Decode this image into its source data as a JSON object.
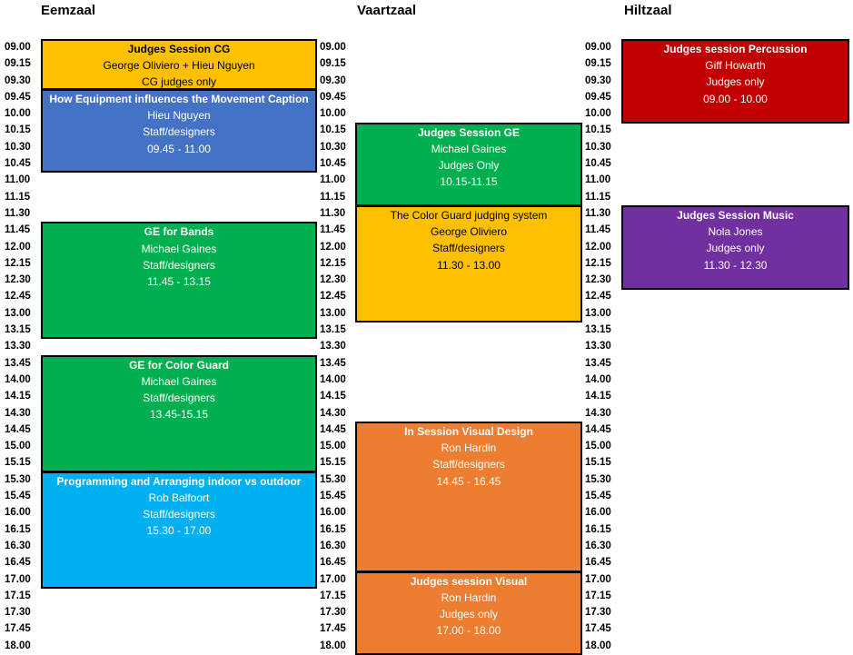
{
  "rooms": [
    "Eemzaal",
    "Vaartzaal",
    "Hiltzaal"
  ],
  "times": [
    "09.00",
    "09.15",
    "09.30",
    "09.45",
    "10.00",
    "10.15",
    "10.30",
    "10.45",
    "11.00",
    "11.15",
    "11.30",
    "11.45",
    "12.00",
    "12.15",
    "12.30",
    "12.45",
    "13.00",
    "13.15",
    "13.30",
    "13.45",
    "14.00",
    "14.15",
    "14.30",
    "14.45",
    "15.00",
    "15.15",
    "15.30",
    "15.45",
    "16.00",
    "16.15",
    "16.30",
    "16.45",
    "17.00",
    "17.15",
    "17.30",
    "17.45",
    "18.00"
  ],
  "colors": {
    "yellow": "#FFC000",
    "blue": "#4472C4",
    "green": "#00B050",
    "lightblue": "#00B0F0",
    "orange": "#ED7D31",
    "red": "#C00000",
    "purple": "#7030A0"
  },
  "sessions": [
    {
      "room": 0,
      "start": 0,
      "end": 3,
      "color": "yellow",
      "title": "Judges Session CG",
      "lines": [
        "George Oliviero + Hieu Nguyen",
        "CG judges only"
      ]
    },
    {
      "room": 0,
      "start": 3,
      "end": 8,
      "color": "blue",
      "title": "How Equipment influences the Movement Caption",
      "lines": [
        "Hieu Nguyen",
        "Staff/designers",
        "09.45 - 11.00"
      ]
    },
    {
      "room": 0,
      "start": 11,
      "end": 18,
      "color": "green",
      "title": "GE for Bands",
      "lines": [
        "Michael Gaines",
        "Staff/designers",
        "11.45 - 13.15"
      ]
    },
    {
      "room": 0,
      "start": 19,
      "end": 26,
      "color": "green",
      "title": "GE for Color Guard",
      "lines": [
        "Michael Gaines",
        "Staff/designers",
        "13.45-15.15"
      ]
    },
    {
      "room": 0,
      "start": 26,
      "end": 33,
      "color": "lightblue",
      "title": "Programming and Arranging indoor vs outdoor",
      "lines": [
        "Rob Balfoort",
        "Staff/designers",
        "15.30 - 17.00"
      ]
    },
    {
      "room": 1,
      "start": 5,
      "end": 10,
      "color": "green",
      "title": "Judges Session GE",
      "lines": [
        "Michael Gaines",
        "Judges Only",
        "10.15-11.15"
      ]
    },
    {
      "room": 1,
      "start": 10,
      "end": 17,
      "color": "yellow",
      "titleBold": false,
      "title": "The Color Guard judging system",
      "lines": [
        "George Oliviero",
        "Staff/designers",
        "11.30 - 13.00"
      ]
    },
    {
      "room": 1,
      "start": 23,
      "end": 32,
      "color": "orange",
      "title": "In Session Visual Design",
      "lines": [
        "Ron Hardin",
        "Staff/designers",
        "14.45 - 16.45"
      ]
    },
    {
      "room": 1,
      "start": 32,
      "end": 37,
      "color": "orange",
      "title": "Judges session Visual",
      "lines": [
        "Ron Hardin",
        "Judges only",
        "17.00 - 18.00"
      ]
    },
    {
      "room": 2,
      "start": 0,
      "end": 5,
      "color": "red",
      "title": "Judges session Percussion",
      "lines": [
        "Giff Howarth",
        "Judges only",
        "09.00 - 10.00"
      ]
    },
    {
      "room": 2,
      "start": 10,
      "end": 15,
      "color": "purple",
      "title": "Judges Session Music",
      "lines": [
        "Nola Jones",
        "Judges only",
        "11.30 - 12.30"
      ]
    }
  ]
}
